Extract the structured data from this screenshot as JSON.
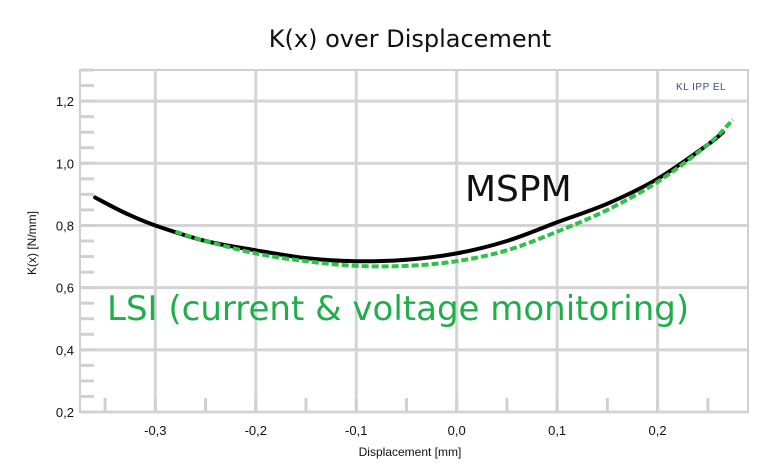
{
  "chart_data": {
    "type": "line",
    "title": "K(x) over Displacement",
    "xlabel": "Displacement [mm]",
    "ylabel": "K(x) [N/mm]",
    "xlim": [
      -0.375,
      0.29
    ],
    "ylim": [
      0.2,
      1.3
    ],
    "x_ticks": [
      -0.3,
      -0.2,
      -0.1,
      0.0,
      0.1,
      0.2
    ],
    "x_tick_labels": [
      "-0,3",
      "-0,2",
      "-0,1",
      "0,0",
      "0,1",
      "0,2"
    ],
    "y_ticks": [
      0.2,
      0.4,
      0.6,
      0.8,
      1.0,
      1.2
    ],
    "y_tick_labels": [
      "0,2",
      "0,4",
      "0,6",
      "0,8",
      "1,0",
      "1,2"
    ],
    "grid": true,
    "brand_label": "KL IPP EL",
    "annotations": [
      "MSPM",
      "LSI (current & voltage monitoring)"
    ],
    "series": [
      {
        "name": "MSPM",
        "color": "#000000",
        "style": "solid",
        "x": [
          -0.36,
          -0.33,
          -0.3,
          -0.25,
          -0.2,
          -0.15,
          -0.1,
          -0.05,
          0.0,
          0.05,
          0.1,
          0.15,
          0.2,
          0.25,
          0.265
        ],
        "y": [
          0.89,
          0.84,
          0.8,
          0.75,
          0.72,
          0.695,
          0.685,
          0.69,
          0.71,
          0.75,
          0.81,
          0.87,
          0.95,
          1.06,
          1.1
        ]
      },
      {
        "name": "LSI (current & voltage monitoring)",
        "color": "#2ec24a",
        "style": "dashed",
        "x": [
          -0.28,
          -0.25,
          -0.2,
          -0.15,
          -0.1,
          -0.05,
          0.0,
          0.05,
          0.1,
          0.15,
          0.2,
          0.25,
          0.275
        ],
        "y": [
          0.78,
          0.75,
          0.71,
          0.685,
          0.67,
          0.67,
          0.685,
          0.72,
          0.78,
          0.85,
          0.94,
          1.06,
          1.14
        ]
      }
    ]
  }
}
